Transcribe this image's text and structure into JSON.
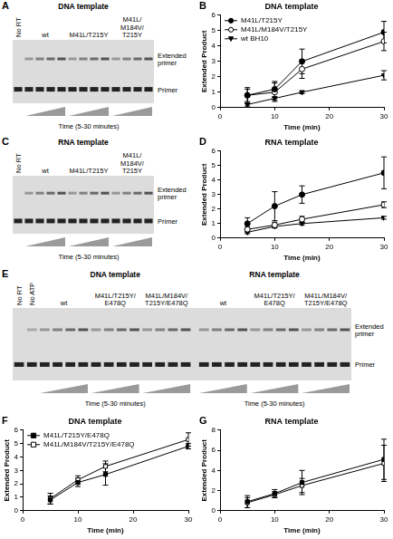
{
  "gels": [
    {
      "panel": "A",
      "title": "DNA template",
      "controls": [
        "No RT"
      ],
      "sections": [
        {
          "groups": [
            "wt",
            "M41L/T215Y",
            "M41L/M184V/T215Y"
          ]
        }
      ],
      "band_labels": [
        "Extended primer",
        "Primer"
      ],
      "time_label": "Time (5-30 minutes)"
    },
    {
      "panel": "C",
      "title": "RNA template",
      "controls": [
        "No RT"
      ],
      "sections": [
        {
          "groups": [
            "wt",
            "M41L/T215Y",
            "M41L/M184V/T215Y"
          ]
        }
      ],
      "band_labels": [
        "Extended primer",
        "Primer"
      ],
      "time_label": "Time (5-30 minutes)"
    },
    {
      "panel": "E",
      "controls": [
        "No RT",
        "No ATP"
      ],
      "sections": [
        {
          "title": "DNA template",
          "groups": [
            "wt",
            "M41L/T215Y/E478Q",
            "M41L/M184V/T215Y/E478Q"
          ]
        },
        {
          "title": "RNA template",
          "groups": [
            "wt",
            "M41L/T215Y/E478Q",
            "M41L/M184V/T215Y/E478Q"
          ]
        }
      ],
      "band_labels": [
        "Extended primer",
        "Primer"
      ],
      "time_label": "Time (5-30 minutes)"
    }
  ],
  "chart_data": [
    {
      "panel": "B",
      "type": "line",
      "title": "DNA template",
      "x_label": "Time (min)",
      "y_label": "Extended Product",
      "x": [
        5,
        10,
        15,
        30
      ],
      "xlim": [
        0,
        30
      ],
      "xticks": [
        0,
        10,
        20,
        30
      ],
      "ylim": [
        0,
        6
      ],
      "yticks": [
        0,
        1,
        2,
        3,
        4,
        5,
        6
      ],
      "legend": "upper left",
      "series": [
        {
          "name": "M41L/T215Y",
          "color": "#000000",
          "marker": "circle",
          "line_style": "solid",
          "values": [
            0.8,
            1.2,
            3.0,
            4.9
          ],
          "errors": [
            0.5,
            0.5,
            0.8,
            0.7
          ]
        },
        {
          "name": "M41L/M184V/T215Y",
          "color": "#000000",
          "marker": "open_circle",
          "line_style": "solid",
          "values": [
            0.8,
            1.0,
            2.5,
            4.3
          ],
          "errors": [
            0.4,
            0.6,
            0.6,
            0.6
          ]
        },
        {
          "name": "wt BH10",
          "color": "#000000",
          "marker": "triangle_down",
          "line_style": "solid",
          "values": [
            0.2,
            0.6,
            1.0,
            2.1
          ],
          "errors": [
            0.1,
            0.1,
            0.1,
            0.3
          ]
        }
      ]
    },
    {
      "panel": "D",
      "type": "line",
      "title": "RNA template",
      "x_label": "Time (min)",
      "y_label": "Extended Product",
      "x": [
        5,
        10,
        15,
        30
      ],
      "xlim": [
        0,
        30
      ],
      "xticks": [
        0,
        10,
        20,
        30
      ],
      "ylim": [
        0,
        6
      ],
      "yticks": [
        0,
        1,
        2,
        3,
        4,
        5,
        6
      ],
      "series": [
        {
          "color": "#000000",
          "marker": "circle",
          "line_style": "solid",
          "values": [
            1.0,
            2.2,
            3.0,
            4.5
          ],
          "errors": [
            0.4,
            1.0,
            0.6,
            1.1
          ]
        },
        {
          "color": "#000000",
          "marker": "open_circle",
          "line_style": "solid",
          "values": [
            0.6,
            0.9,
            1.3,
            2.3
          ],
          "errors": [
            0.2,
            0.2,
            0.2,
            0.2
          ]
        },
        {
          "color": "#000000",
          "marker": "triangle_down",
          "line_style": "solid",
          "values": [
            0.4,
            0.8,
            1.0,
            1.4
          ],
          "errors": [
            0.1,
            0.1,
            0.1,
            0.1
          ]
        }
      ]
    },
    {
      "panel": "F",
      "type": "line",
      "title": "DNA template",
      "x_label": "Time (min)",
      "y_label": "Extended Product",
      "x": [
        5,
        10,
        15,
        30
      ],
      "xlim": [
        0,
        30
      ],
      "xticks": [
        0,
        10,
        20,
        30
      ],
      "ylim": [
        0,
        6
      ],
      "yticks": [
        0,
        1,
        2,
        3,
        4,
        5,
        6
      ],
      "legend": "upper left",
      "series": [
        {
          "name": "M41L/T215Y/E478Q",
          "color": "#000000",
          "marker": "square",
          "line_style": "solid",
          "values": [
            0.8,
            2.1,
            2.7,
            4.8
          ],
          "errors": [
            0.3,
            0.3,
            0.8,
            0.2
          ]
        },
        {
          "name": "M41L/M184V/T215Y/E478Q",
          "color": "#000000",
          "marker": "open_square",
          "line_style": "solid",
          "values": [
            0.9,
            2.3,
            3.3,
            5.3
          ],
          "errors": [
            0.4,
            0.3,
            0.4,
            0.5
          ]
        }
      ]
    },
    {
      "panel": "G",
      "type": "line",
      "title": "RNA template",
      "x_label": "Time (min)",
      "y_label": "Extended Product",
      "x": [
        5,
        10,
        15,
        30
      ],
      "xlim": [
        0,
        30
      ],
      "xticks": [
        0,
        10,
        20,
        30
      ],
      "ylim": [
        0,
        8
      ],
      "yticks": [
        0,
        2,
        4,
        6,
        8
      ],
      "series": [
        {
          "color": "#000000",
          "marker": "square",
          "line_style": "solid",
          "values": [
            0.9,
            1.7,
            2.8,
            5.1
          ],
          "errors": [
            0.6,
            0.4,
            1.2,
            2.0
          ]
        },
        {
          "color": "#000000",
          "marker": "open_square",
          "line_style": "solid",
          "values": [
            0.8,
            1.6,
            2.5,
            4.7
          ],
          "errors": [
            0.5,
            0.3,
            0.7,
            1.8
          ]
        }
      ]
    }
  ]
}
